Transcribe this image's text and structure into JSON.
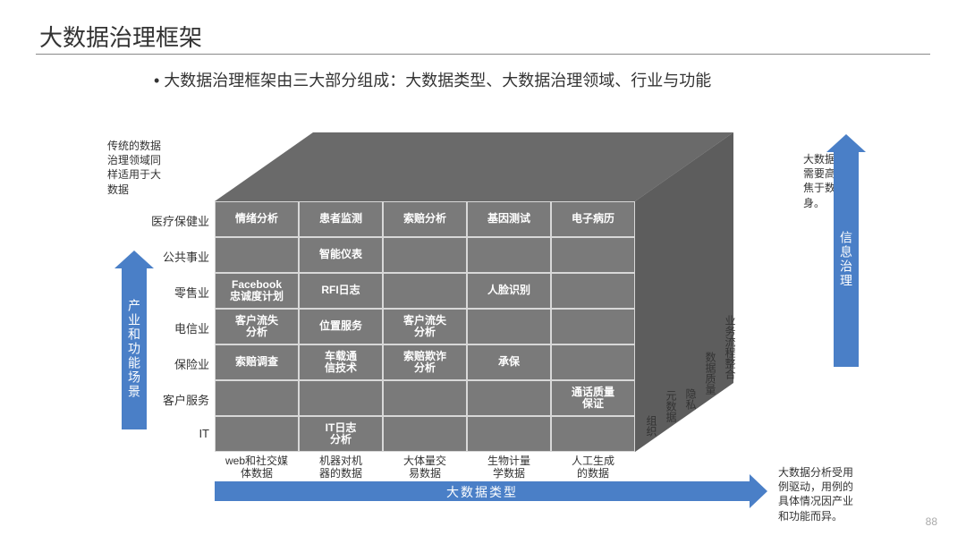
{
  "title": "大数据治理框架",
  "bullet": "• 大数据治理框架由三大部分组成：大数据类型、大数据治理领域、行业与功能",
  "notes": {
    "topleft": "传统的数据\n治理领域同\n样适用于大\n数据",
    "topright": "大数据治理\n需要高度聚\n焦于数据本\n身。",
    "bottomright": "大数据分析受用\n例驱动，用例的\n具体情况因产业\n和功能而异。"
  },
  "arrows": {
    "left": "产业和功能场景",
    "right": "信息治理",
    "bottom": "大数据类型"
  },
  "row_labels": [
    "医疗保健业",
    "公共事业",
    "零售业",
    "电信业",
    "保险业",
    "客户服务",
    "IT"
  ],
  "col_labels": [
    "web和社交媒\n体数据",
    "机器对机\n器的数据",
    "大体量交\n易数据",
    "生物计量\n学数据",
    "人工生成\n的数据"
  ],
  "side_labels": [
    "组织",
    "元数据",
    "隐私",
    "数据质量",
    "业务流程整合"
  ],
  "cells": [
    [
      "情绪分析",
      "患者监测",
      "索赔分析",
      "基因测试",
      "电子病历"
    ],
    [
      "",
      "智能仪表",
      "",
      "",
      ""
    ],
    [
      "Facebook\n忠诚度计划",
      "RFI日志",
      "",
      "人脸识别",
      ""
    ],
    [
      "客户流失\n分析",
      "位置服务",
      "客户流失\n分析",
      "",
      ""
    ],
    [
      "索赔调查",
      "车载通\n信技术",
      "索赔欺诈\n分析",
      "承保",
      ""
    ],
    [
      "",
      "",
      "",
      "",
      "通话质量\n保证"
    ],
    [
      "",
      "IT日志\n分析",
      "",
      "",
      ""
    ]
  ],
  "colors": {
    "arrow": "#4a7fc7",
    "grid_bg": "#7a7a7a",
    "grid_line": "#d8d8d8",
    "cube_top": "#6a6a6a",
    "cube_side": "#5d5d5d"
  },
  "page": "88"
}
